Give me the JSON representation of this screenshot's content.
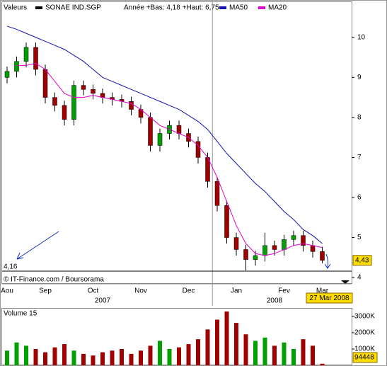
{
  "chart_data": [
    {
      "type": "candlestick",
      "header": "Valeurs",
      "name": "SONAE IND.SGP",
      "range_note": "Année +Bas: 4,18 +Haut: 6,75",
      "categories": [
        "Aou",
        null,
        null,
        null,
        "Sep",
        null,
        null,
        null,
        null,
        "Oct",
        null,
        null,
        null,
        null,
        "Nov",
        null,
        null,
        null,
        null,
        "Dec",
        null,
        null,
        null,
        null,
        "Jan",
        null,
        null,
        null,
        null,
        "Fev",
        null,
        null,
        null,
        "Mar"
      ],
      "year_categories": [
        null,
        null,
        null,
        null,
        null,
        null,
        null,
        null,
        null,
        null,
        "2007",
        null,
        null,
        null,
        null,
        null,
        null,
        null,
        null,
        null,
        null,
        null,
        null,
        null,
        null,
        null,
        null,
        null,
        "2008",
        null,
        null,
        null,
        null,
        null
      ],
      "open": [
        9.0,
        9.15,
        9.4,
        9.75,
        9.2,
        8.5,
        8.3,
        7.95,
        8.8,
        8.7,
        8.6,
        8.5,
        8.45,
        8.4,
        8.2,
        8.0,
        7.3,
        7.6,
        7.8,
        7.6,
        7.4,
        7.0,
        6.4,
        5.8,
        5.0,
        4.7,
        4.45,
        4.55,
        4.8,
        4.7,
        4.95,
        5.05,
        4.8,
        4.65
      ],
      "high": [
        9.27,
        9.52,
        9.87,
        9.87,
        9.32,
        8.62,
        8.42,
        8.92,
        8.92,
        8.82,
        8.72,
        8.62,
        8.57,
        8.52,
        8.32,
        8.12,
        7.72,
        7.92,
        7.92,
        7.72,
        7.52,
        7.12,
        6.52,
        5.92,
        5.12,
        4.82,
        4.67,
        5.12,
        4.92,
        5.07,
        5.17,
        5.17,
        4.92,
        4.77
      ],
      "low": [
        8.85,
        9.0,
        9.25,
        9.05,
        8.35,
        8.15,
        7.8,
        7.8,
        8.55,
        8.45,
        8.35,
        8.3,
        8.25,
        8.05,
        7.85,
        7.15,
        7.15,
        7.45,
        7.45,
        7.25,
        6.85,
        6.25,
        5.65,
        4.85,
        4.55,
        4.18,
        4.3,
        4.4,
        4.55,
        4.55,
        4.8,
        4.65,
        4.5,
        4.36
      ],
      "close": [
        9.15,
        9.4,
        9.75,
        9.2,
        8.5,
        8.3,
        7.95,
        8.8,
        8.7,
        8.6,
        8.5,
        8.45,
        8.4,
        8.2,
        8.0,
        7.3,
        7.6,
        7.8,
        7.6,
        7.4,
        7.0,
        6.4,
        5.8,
        5.0,
        4.7,
        4.45,
        4.55,
        4.8,
        4.7,
        4.95,
        5.05,
        4.8,
        4.65,
        4.43
      ],
      "last_close_label": "4,43",
      "up_color": "#00a000",
      "down_color": "#a00000",
      "series": [
        {
          "name": "MA50",
          "color": "#1010b0",
          "values": [
            10.28,
            10.2,
            10.1,
            10.0,
            9.9,
            9.8,
            9.7,
            9.55,
            9.4,
            9.2,
            9.0,
            8.9,
            8.8,
            8.7,
            8.6,
            8.5,
            8.4,
            8.3,
            8.2,
            8.05,
            7.9,
            7.7,
            7.4,
            7.1,
            6.85,
            6.6,
            6.35,
            6.15,
            5.9,
            5.65,
            5.45,
            5.2,
            5.05,
            4.85
          ]
        },
        {
          "name": "MA20",
          "color": "#e000d0",
          "values": [
            null,
            9.3,
            9.3,
            9.35,
            9.2,
            8.9,
            8.6,
            8.5,
            8.5,
            8.55,
            8.5,
            8.45,
            8.4,
            8.35,
            8.2,
            8.0,
            7.8,
            7.7,
            7.6,
            7.5,
            7.3,
            7.0,
            6.5,
            5.9,
            5.3,
            4.85,
            4.6,
            4.55,
            4.6,
            4.7,
            4.8,
            4.85,
            4.8,
            4.75
          ]
        }
      ],
      "ylim": [
        3.86,
        10.88
      ],
      "yticks": [
        4,
        5,
        6,
        7,
        8,
        9,
        10
      ],
      "reference_line": {
        "value": 4.16,
        "label": "4,16"
      },
      "date_label": "27 Mar 2008",
      "credit": "© IT-Finance.com / Boursorama"
    },
    {
      "type": "bar",
      "title": "Volume 15",
      "values": [
        900000,
        1400000,
        1200000,
        1000000,
        800000,
        1100000,
        1300000,
        900000,
        700000,
        600000,
        800000,
        900000,
        1000000,
        700000,
        900000,
        1200000,
        1500000,
        1000000,
        1100000,
        1300000,
        1600000,
        2200000,
        2800000,
        3300000,
        2600000,
        1900000,
        1500000,
        1700000,
        1200000,
        1400000,
        1000000,
        1600000,
        1200000,
        94448
      ],
      "ylim": [
        0,
        3300000
      ],
      "yticks": [
        {
          "value": 1000000,
          "label": "1000K"
        },
        {
          "value": 2000000,
          "label": "2000K"
        },
        {
          "value": 3000000,
          "label": "3000K"
        }
      ]
    }
  ]
}
